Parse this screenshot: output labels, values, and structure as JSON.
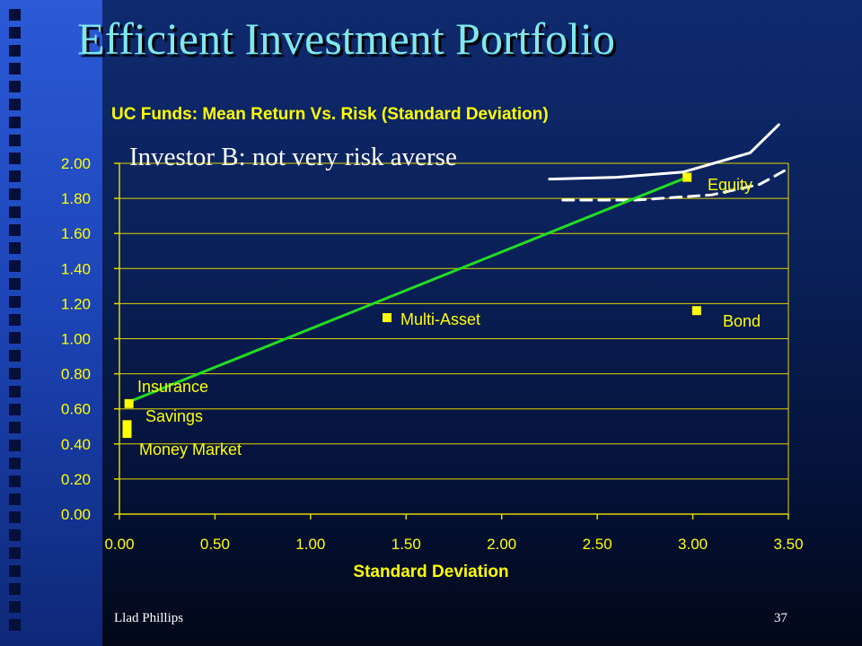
{
  "slide": {
    "title": "Efficient Investment Portfolio",
    "footer_left": "Llad Phillips",
    "page_number": "37",
    "annotation": "Investor B: not very risk averse"
  },
  "colors": {
    "background": "#0a2058",
    "left_strip": "#1c43b4",
    "title_text": "#7fe8ee",
    "chart_text": "#ffff00",
    "gridline": "#e0d800",
    "point": "#ffff00",
    "frontier_line": "#22dd22",
    "indifference_curve": "#ffffff"
  },
  "chart_data": {
    "type": "scatter",
    "title": "UC Funds: Mean Return Vs. Risk (Standard Deviation)",
    "xlabel": "Standard Deviation",
    "ylabel": "",
    "xlim": [
      0,
      3.5
    ],
    "ylim": [
      0,
      2.0
    ],
    "x_ticks": [
      "0.00",
      "0.50",
      "1.00",
      "1.50",
      "2.00",
      "2.50",
      "3.00",
      "3.50"
    ],
    "y_ticks": [
      "0.00",
      "0.20",
      "0.40",
      "0.60",
      "0.80",
      "1.00",
      "1.20",
      "1.40",
      "1.60",
      "1.80",
      "2.00"
    ],
    "grid": "horizontal",
    "points": [
      {
        "label": "Insurance",
        "x": 0.05,
        "y": 0.63
      },
      {
        "label": "Savings",
        "x": 0.04,
        "y": 0.51
      },
      {
        "label": "Money Market",
        "x": 0.04,
        "y": 0.46
      },
      {
        "label": "Multi-Asset",
        "x": 1.4,
        "y": 1.12
      },
      {
        "label": "Bond",
        "x": 3.02,
        "y": 1.16
      },
      {
        "label": "Equity",
        "x": 2.97,
        "y": 1.92
      }
    ],
    "frontier_line": {
      "x": [
        0.05,
        2.97
      ],
      "y": [
        0.64,
        1.92
      ]
    },
    "indifference_curves": [
      {
        "style": "solid",
        "x": [
          2.25,
          2.6,
          2.95,
          3.3,
          3.45
        ],
        "y": [
          1.91,
          1.92,
          1.95,
          2.06,
          2.22
        ]
      },
      {
        "style": "dashed",
        "x": [
          2.32,
          2.7,
          3.1,
          3.35,
          3.5
        ],
        "y": [
          1.79,
          1.79,
          1.82,
          1.88,
          1.97
        ]
      }
    ]
  }
}
